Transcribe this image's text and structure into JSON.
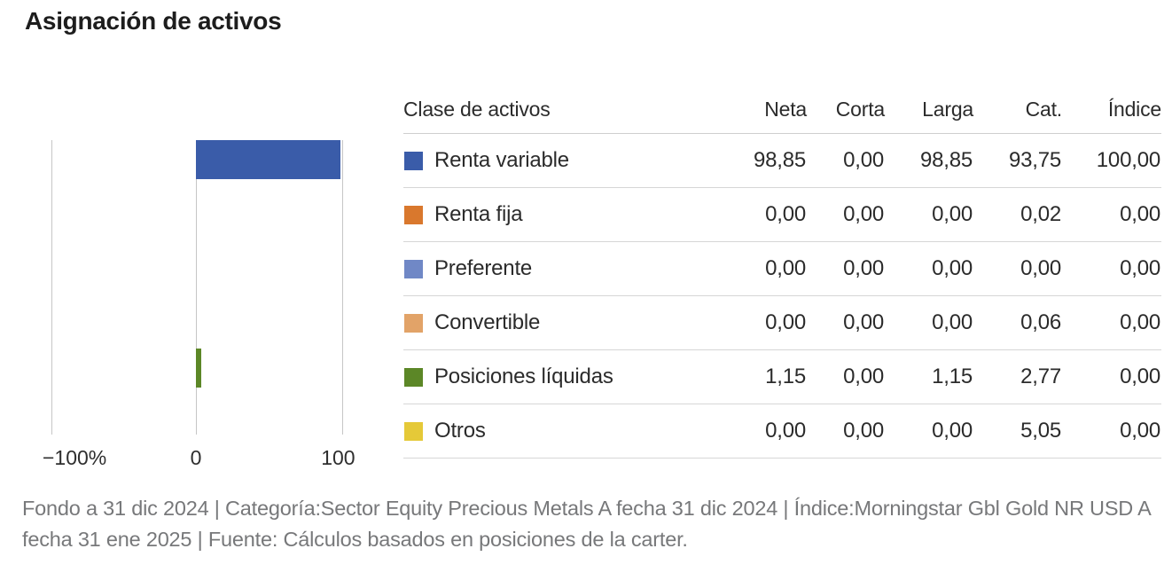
{
  "header": {
    "title": "Asignación de activos"
  },
  "chart_data": {
    "type": "bar",
    "orientation": "horizontal",
    "title": "Asignación de activos",
    "categories": [
      "Renta variable",
      "Renta fija",
      "Preferente",
      "Convertible",
      "Posiciones líquidas",
      "Otros"
    ],
    "series": [
      {
        "name": "Neta",
        "values": [
          98.85,
          0.0,
          0.0,
          0.0,
          1.15,
          0.0
        ]
      }
    ],
    "x_ticks": [
      "−100%",
      "0",
      "100"
    ],
    "xlim": [
      -100,
      110
    ],
    "grid": "vertical-lines-at-ticks",
    "legend_position": "table-first-column",
    "bar_colors": [
      "#3a5ca9",
      "#d9782d",
      "#7088c6",
      "#e2a368",
      "#5c8727",
      "#e5c938"
    ]
  },
  "table": {
    "columns": [
      "Clase de activos",
      "Neta",
      "Corta",
      "Larga",
      "Cat.",
      "Índice"
    ],
    "rows": [
      {
        "label": "Renta variable",
        "color": "#3a5ca9",
        "values": [
          "98,85",
          "0,00",
          "98,85",
          "93,75",
          "100,00"
        ]
      },
      {
        "label": "Renta fija",
        "color": "#d9782d",
        "values": [
          "0,00",
          "0,00",
          "0,00",
          "0,02",
          "0,00"
        ]
      },
      {
        "label": "Preferente",
        "color": "#7088c6",
        "values": [
          "0,00",
          "0,00",
          "0,00",
          "0,00",
          "0,00"
        ]
      },
      {
        "label": "Convertible",
        "color": "#e2a368",
        "values": [
          "0,00",
          "0,00",
          "0,00",
          "0,06",
          "0,00"
        ]
      },
      {
        "label": "Posiciones líquidas",
        "color": "#5c8727",
        "values": [
          "1,15",
          "0,00",
          "1,15",
          "2,77",
          "0,00"
        ]
      },
      {
        "label": "Otros",
        "color": "#e5c938",
        "values": [
          "0,00",
          "0,00",
          "0,00",
          "5,05",
          "0,00"
        ]
      }
    ]
  },
  "footnote": {
    "text": "Fondo a 31 dic 2024 | Categoría:Sector Equity Precious Metals A fecha 31 dic 2024 | Índice:Morningstar Gbl Gold NR USD A fecha 31 ene 2025 | Fuente: Cálculos basados en posiciones de la carter."
  }
}
